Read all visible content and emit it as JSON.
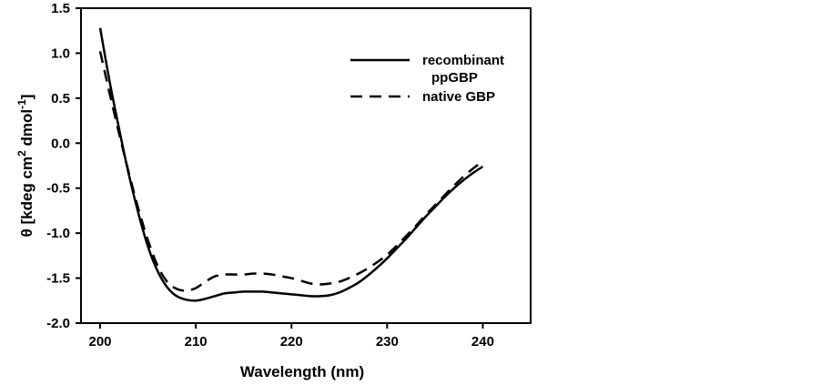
{
  "chart_data": {
    "type": "line",
    "xlabel": "Wavelength (nm)",
    "ylabel": {
      "prefix": "θ [kdeg cm",
      "sup1": "2",
      "middle": " dmol",
      "sup2": "-1",
      "suffix": "]"
    },
    "xlim": [
      198,
      245
    ],
    "ylim": [
      -2.0,
      1.5
    ],
    "x_ticks": [
      200,
      210,
      220,
      230,
      240
    ],
    "y_ticks": [
      1.5,
      1.0,
      0.5,
      0.0,
      -0.5,
      -1.0,
      -1.5,
      -2.0
    ],
    "x_tick_labels": [
      "200",
      "210",
      "220",
      "230",
      "240"
    ],
    "y_tick_labels": [
      "1.5",
      "1.0",
      "0.5",
      "0.0",
      "-0.5",
      "-1.0",
      "-1.5",
      "-2.0"
    ],
    "grid": false,
    "legend_position": "top-right",
    "series": [
      {
        "name": "recombinant",
        "name_line2": "ppGBP",
        "style": "solid",
        "color": "#000000",
        "x": [
          200,
          201,
          202,
          203,
          204,
          205,
          206,
          207,
          208,
          209,
          210,
          211,
          212,
          213,
          214,
          215,
          216,
          217,
          218,
          219,
          220,
          221,
          222,
          223,
          224,
          225,
          226,
          227,
          228,
          229,
          230,
          231,
          232,
          233,
          234,
          235,
          236,
          237,
          238,
          239,
          240
        ],
        "y": [
          1.28,
          0.68,
          0.15,
          -0.35,
          -0.78,
          -1.15,
          -1.42,
          -1.6,
          -1.7,
          -1.74,
          -1.75,
          -1.73,
          -1.7,
          -1.67,
          -1.66,
          -1.65,
          -1.65,
          -1.65,
          -1.66,
          -1.67,
          -1.68,
          -1.69,
          -1.7,
          -1.7,
          -1.69,
          -1.66,
          -1.61,
          -1.55,
          -1.47,
          -1.38,
          -1.28,
          -1.17,
          -1.06,
          -0.94,
          -0.82,
          -0.71,
          -0.6,
          -0.5,
          -0.41,
          -0.33,
          -0.26
        ]
      },
      {
        "name": "native GBP",
        "style": "dashed",
        "color": "#000000",
        "x": [
          200,
          201,
          202,
          203,
          204,
          205,
          206,
          207,
          208,
          209,
          210,
          211,
          212,
          213,
          214,
          215,
          216,
          217,
          218,
          219,
          220,
          221,
          222,
          223,
          224,
          225,
          226,
          227,
          228,
          229,
          230,
          231,
          232,
          233,
          234,
          235,
          236,
          237,
          238,
          239,
          240
        ],
        "y": [
          1.02,
          0.55,
          0.1,
          -0.33,
          -0.73,
          -1.08,
          -1.36,
          -1.54,
          -1.62,
          -1.64,
          -1.61,
          -1.54,
          -1.48,
          -1.46,
          -1.46,
          -1.46,
          -1.45,
          -1.45,
          -1.46,
          -1.48,
          -1.5,
          -1.53,
          -1.56,
          -1.57,
          -1.56,
          -1.54,
          -1.5,
          -1.45,
          -1.39,
          -1.32,
          -1.24,
          -1.14,
          -1.03,
          -0.92,
          -0.8,
          -0.69,
          -0.58,
          -0.47,
          -0.37,
          -0.28,
          -0.2
        ]
      }
    ]
  }
}
